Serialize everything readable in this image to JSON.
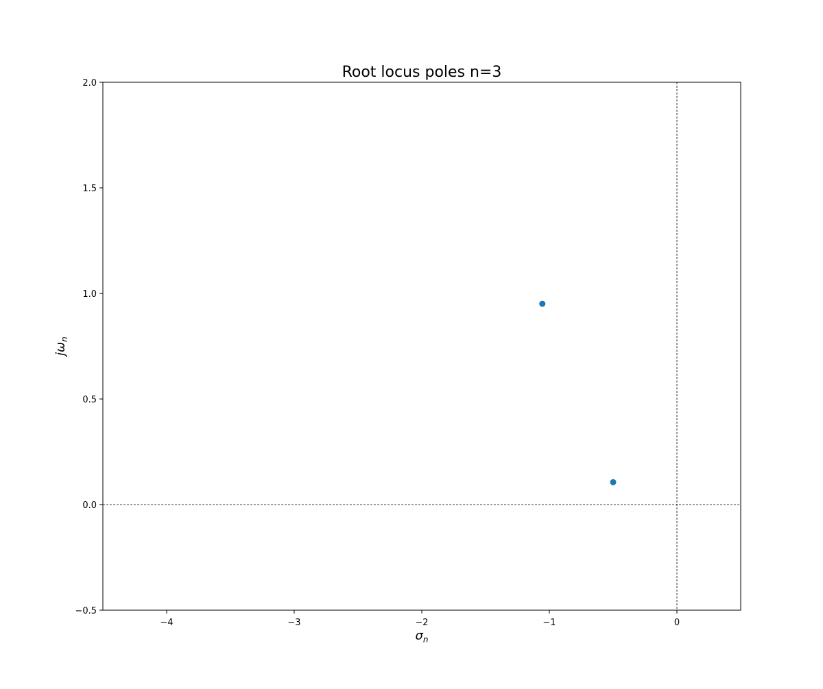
{
  "chart_data": {
    "type": "scatter",
    "title": "Root locus poles n=3",
    "xlabel": "σ",
    "xlabel_sub": "n",
    "ylabel": "jω",
    "ylabel_sub": "n",
    "xlim": [
      -4.5,
      0.5
    ],
    "ylim": [
      -0.5,
      2.0
    ],
    "xticks": [
      {
        "value": -4,
        "label": "−4"
      },
      {
        "value": -3,
        "label": "−3"
      },
      {
        "value": -2,
        "label": "−2"
      },
      {
        "value": -1,
        "label": "−1"
      },
      {
        "value": 0,
        "label": "0"
      }
    ],
    "yticks": [
      {
        "value": -0.5,
        "label": "−0.5"
      },
      {
        "value": 0.0,
        "label": "0.0"
      },
      {
        "value": 0.5,
        "label": "0.5"
      },
      {
        "value": 1.0,
        "label": "1.0"
      },
      {
        "value": 1.5,
        "label": "1.5"
      },
      {
        "value": 2.0,
        "label": "2.0"
      }
    ],
    "reference_lines": {
      "x": 0,
      "y": 0,
      "style": "dashed"
    },
    "grid": false,
    "series": [
      {
        "color": "#1f77b4",
        "points": [
          {
            "x": -1.055,
            "y": 0.951
          },
          {
            "x": -0.5,
            "y": 0.106
          }
        ]
      }
    ]
  }
}
